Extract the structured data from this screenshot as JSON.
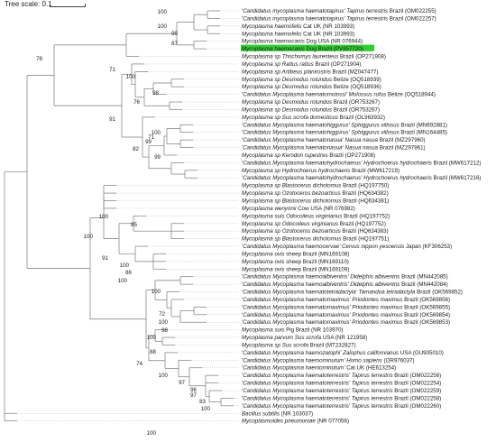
{
  "scale": {
    "label": "Tree scale: 0.1"
  },
  "tips": [
    [
      "'",
      "Candidatus mycoplasma haematotapirus' Tapirus terrestris",
      " Brazil (OM022255)"
    ],
    [
      "'",
      "Candidatus mycoplasma haematotapirus' Tapirus terrestris",
      " Brazil (OM022257)"
    ],
    [
      "",
      "Mycoplasma haemofelis",
      " Cat UK (NR 103993)"
    ],
    [
      "",
      "Mycoplasma haemofelis",
      " Cat UK (NR 103993)"
    ],
    [
      "",
      "Mycoplasma haemocanis",
      " Dog USA (NR 076944)"
    ],
    [
      "",
      "Mycoplasma haemocanis",
      " Dog Brazil (PV857720)"
    ],
    [
      "",
      "Mycoplasma sp Thrichomys laurenteus",
      " Brazil (OP271908)"
    ],
    [
      "",
      "Mycoplasma sp Rattus rattus",
      " Brazil (OP271904)"
    ],
    [
      "",
      "Mycoplasma sp Artibeus planirostris",
      " Brazil (MZ047477)"
    ],
    [
      "",
      "Mycoplasma sp Desmodus rotundus",
      " Belize (OQ518939)"
    ],
    [
      "",
      "Mycoplasma sp Desmodus rotundus",
      " Belize (OQ518936)"
    ],
    [
      "'",
      "Candidatus Mycoplasma haematomolossi' Molossus rufus",
      " Belize (OQ518944)"
    ],
    [
      "",
      "Mycoplasma sp Desmodus rotundus",
      " Brazil (OR753267)"
    ],
    [
      "",
      "Mycoplasma sp Desmodus rotundus",
      " Brazil (OR753267)"
    ],
    [
      "",
      "Mycoplasma sp Sus scrofa domesticus",
      " Brazil (OL963932)"
    ],
    [
      "'",
      "Candidatus Mycoplasma haematohiggurus' Sphiggurus villosus",
      " Brazil (MN692881)"
    ],
    [
      "'",
      "Candidatus Mycoplasma haematohiggurus' Sphiggurus villosus",
      " Brazil (MN164485)"
    ],
    [
      "'",
      "Candidatus Mycoplasma haematonasua' Nasua nasua",
      " Brazil (MZ297960)"
    ],
    [
      "'",
      "Candidatus Mycoplasma haematonasua' Nasua nasua",
      " Brazil (MZ297961)"
    ],
    [
      "",
      "Mycoplasma sp Kerodon rupestres",
      " Brazil (OP271906)"
    ],
    [
      "'",
      "Candidatus Mycoplasma haematohydrochaerus' Hydrochoerus hydrochaeris",
      " Brazil (MW617212)"
    ],
    [
      "",
      "Mycoplasma sp Hydrochoerus hydrochaeris",
      " Brazil (MW617219)"
    ],
    [
      "'",
      "Candidatus Mycoplasma haematohydrochaerus' Hydrochoerus hydrochaeris",
      " Brazil (MW617216)"
    ],
    [
      "",
      "Mycoplasma sp Blastocerus dichotomus",
      " Brazil (HQ197750)"
    ],
    [
      "",
      "Mycoplasma sp Ozotoceros bezoarticus",
      " Brazil (HQ634382)"
    ],
    [
      "",
      "Mycoplasma sp Blastocerus dichotomus",
      " Brazil (HQ634381)"
    ],
    [
      "",
      "Mycoplasma wenyonii",
      " Cow USA (NR 076982)"
    ],
    [
      "",
      "Mycoplasma suis Odocoileus virginianus",
      " Brazil (HQ197752)"
    ],
    [
      "",
      "Mycoplasma sp Odocoileus virginianus",
      " Brazil (HQ197752)"
    ],
    [
      "",
      "Mycoplasma sp Ozotoceros bezoarticus",
      " Brazil (HQ634383)"
    ],
    [
      "",
      "Mycoplasma sp Blastocerus dichotomus",
      " Brazil (HQ197751)"
    ],
    [
      "'",
      "Candidatus Mycoplasma haemocervae' Cervus nippon yesoensis",
      " Japan (KF306253)"
    ],
    [
      "",
      "Mycoplasma ovis",
      " sheep Brazil (MN169108)"
    ],
    [
      "",
      "Mycoplasma ovis",
      " sheep Brazil (MN169110)"
    ],
    [
      "",
      "Mycoplasma ovis",
      " sheep Brazil (MN169109)"
    ],
    [
      "'",
      "Candidatus Mycoplasma haemoalbiventris' Didelphis albiventris",
      " Brazil (MN442085)"
    ],
    [
      "'",
      "Candidatus Mycoplasma haemoalbiventris' Didelphis albiventris",
      " Brazil (MN442084)"
    ],
    [
      "'",
      "Candidatus Mycoplasma haematotetradactyla' Tamandua tetradactyla",
      " Brazil (OK569852)"
    ],
    [
      "'",
      "Candidatus Mycoplasma haematomaximus' Priodontes maximus",
      " Brazil (OK569856)"
    ],
    [
      "'",
      "Candidatus Mycoplasma haematomaximus' Priodontes maximus",
      " Brazil (OK569855)"
    ],
    [
      "'",
      "Candidatus Mycoplasma haematomaximus' Priodontes maximus",
      " Brazil (OK569854)"
    ],
    [
      "'",
      "Candidatus Mycoplasma haematomaximus' Priodontes maximus",
      " Brazil (OK569853)"
    ],
    [
      "",
      "Mycoplasma suis",
      " Pig Brazil (NR 103970)"
    ],
    [
      "",
      "Mycoplasma parvum Sus scrofa",
      " USA (NR 121958)"
    ],
    [
      "",
      "Mycoplasma sp Sus scrofa",
      " Brazil (MT232827)"
    ],
    [
      "'",
      "Candidatus Mycoplasma haemozalophi' Zalophus californianus",
      " USA (GU905010)"
    ],
    [
      "'",
      "Candidatus Mycoplasma haemominutum' Homo sapiens",
      " (OR976037)"
    ],
    [
      "'",
      "Candidatus Mycoplasma haemominutum'",
      " Cat UK (HE613254)"
    ],
    [
      "'",
      "Candidatus Mycoplasma haematoterrestris' Tapirus terrestris",
      " Brazil (OM022256)"
    ],
    [
      "'",
      "Candidatus Mycoplasma haematoterrestris' Tapirus terrestris",
      " Brazil (OM022254)"
    ],
    [
      "'",
      "Candidatus Mycoplasma haematoterrestris' Tapirus terrestris",
      " Brazil (OM022259)"
    ],
    [
      "'",
      "Candidatus Mycoplasma haematoterrestris' Tapirus terrestris",
      " Brazil (OM022258)"
    ],
    [
      "'",
      "Candidatus Mycoplasma haematoterrestris' Tapirus terrestris",
      " Brazil (OM022260)"
    ],
    [
      "",
      "Bacillus subtilis",
      " (NR 103037)"
    ],
    [
      "",
      "Mycoplasmoides pneumoniae",
      " (NR 077056)"
    ]
  ],
  "highlight_index": 5,
  "highlight_color": "#33cc33",
  "branch_color": "#7a7a7a",
  "bootstraps": [
    "100",
    "100",
    "99",
    "87",
    "78",
    "71",
    "100",
    "98",
    "76",
    "91",
    "100",
    "71",
    "99",
    "82",
    "99",
    "100",
    "85",
    "100",
    "91",
    "100",
    "86",
    "100",
    "100",
    "72",
    "100",
    "98",
    "100",
    "88",
    "74",
    "100",
    "97",
    "96",
    "97",
    "83",
    "100",
    "100"
  ]
}
